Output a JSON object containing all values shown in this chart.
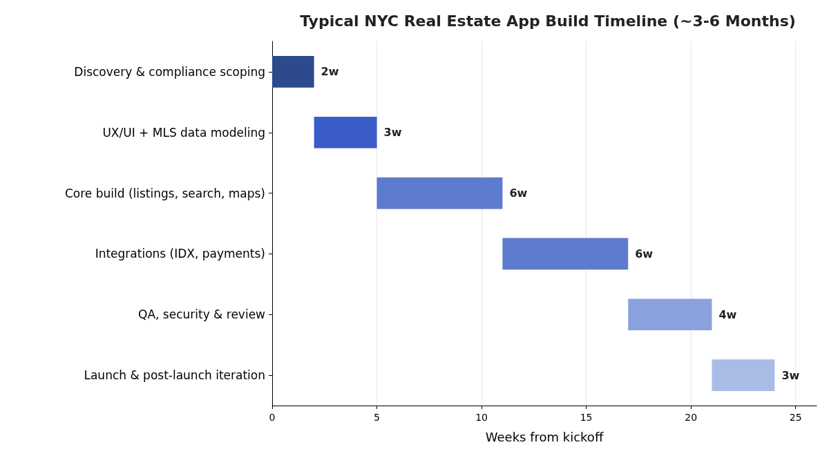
{
  "chart_data": {
    "type": "bar",
    "orientation": "horizontal",
    "title": "Typical NYC Real Estate App Build Timeline (~3-6 Months)",
    "xlabel": "Weeks from kickoff",
    "categories": [
      "Discovery & compliance scoping",
      "UX/UI + MLS data modeling",
      "Core build (listings, search, maps)",
      "Integrations (IDX, payments)",
      "QA, security & review",
      "Launch & post-launch iteration"
    ],
    "base": [
      0,
      2,
      5,
      11,
      17,
      21
    ],
    "values": [
      2,
      3,
      6,
      6,
      4,
      3
    ],
    "colors": [
      "#2c4a8c",
      "#3a5cc9",
      "#5d7cd0",
      "#5d7cd0",
      "#8aa1dd",
      "#a8bce6"
    ],
    "value_labels": [
      "2w",
      "3w",
      "6w",
      "6w",
      "4w",
      "3w"
    ],
    "xlim": [
      0,
      26
    ],
    "xticks": [
      0,
      5,
      10,
      15,
      20,
      25
    ],
    "grid": "x"
  }
}
